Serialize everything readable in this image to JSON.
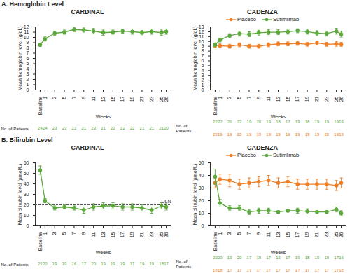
{
  "chart_data": [
    {
      "type": "line",
      "section": "A. Hemoglobin Level",
      "title": "CARDINAL",
      "x_label": "Weeks",
      "y_label": "Mean hemoglobin level (g/dL)",
      "x": [
        0,
        1,
        3,
        5,
        7,
        9,
        11,
        13,
        15,
        17,
        19,
        21,
        23,
        25,
        26
      ],
      "xlim": [
        -1,
        27
      ],
      "xticks": [
        {
          "value": 0,
          "label": "Baseline"
        },
        1,
        3,
        5,
        7,
        9,
        11,
        13,
        15,
        17,
        19,
        21,
        23,
        25,
        26
      ],
      "ylim": [
        0,
        12
      ],
      "yticks": [
        0,
        1,
        2,
        3,
        4,
        5,
        6,
        7,
        8,
        9,
        10,
        11,
        12
      ],
      "marker": "circle",
      "patients_label": "No. of Patients",
      "series": [
        {
          "name": "Sutimlimab",
          "color": "#5ca83c",
          "values": [
            8.6,
            9.7,
            10.8,
            11.0,
            11.5,
            11.4,
            11.2,
            10.9,
            11.0,
            11.2,
            11.1,
            10.9,
            11.1,
            10.9,
            11.1
          ],
          "errors": [
            0.3,
            0.4,
            0.4,
            0.4,
            0.4,
            0.4,
            0.5,
            0.5,
            0.4,
            0.4,
            0.5,
            0.4,
            0.5,
            0.5,
            0.5
          ],
          "n": [
            24,
            24,
            23,
            23,
            22,
            21,
            23,
            21,
            22,
            22,
            22,
            21,
            21,
            21,
            20
          ]
        }
      ]
    },
    {
      "type": "line",
      "title": "CADENZA",
      "x_label": "Weeks",
      "y_label": "Mean hemoglobin level (g/dL)",
      "x": [
        0,
        1,
        3,
        5,
        7,
        9,
        11,
        13,
        15,
        17,
        19,
        21,
        23,
        25,
        26
      ],
      "xlim": [
        -1,
        27
      ],
      "xticks": [
        {
          "value": 0,
          "label": "Baseline"
        },
        1,
        3,
        5,
        7,
        9,
        11,
        13,
        15,
        17,
        19,
        21,
        23,
        25,
        26
      ],
      "ylim": [
        0,
        13
      ],
      "yticks": [
        0,
        1,
        2,
        3,
        4,
        5,
        6,
        7,
        8,
        9,
        10,
        11,
        12,
        13
      ],
      "marker": "circle",
      "legend": "top",
      "patients_label": "No. of\nPatients",
      "series": [
        {
          "name": "Sutimlimab",
          "color": "#5ca83c",
          "values": [
            9.3,
            10.3,
            11.2,
            11.6,
            11.5,
            11.8,
            11.9,
            11.9,
            12.0,
            12.2,
            12.0,
            11.7,
            11.6,
            12.1,
            11.5
          ],
          "errors": [
            0.4,
            0.4,
            0.4,
            0.5,
            0.5,
            0.5,
            0.5,
            0.5,
            0.5,
            0.4,
            0.5,
            0.5,
            0.5,
            0.6,
            0.6
          ],
          "n": [
            22,
            22,
            21,
            22,
            19,
            20,
            19,
            18,
            17,
            19,
            18,
            19,
            19,
            19,
            19
          ]
        },
        {
          "name": "Placebo",
          "color": "#f07f24",
          "values": [
            9.2,
            9.1,
            9.0,
            9.3,
            9.0,
            9.0,
            9.3,
            9.5,
            9.5,
            9.6,
            9.4,
            9.7,
            9.4,
            9.5,
            9.4
          ],
          "errors": [
            0.4,
            0.4,
            0.4,
            0.4,
            0.4,
            0.4,
            0.4,
            0.4,
            0.4,
            0.4,
            0.4,
            0.4,
            0.4,
            0.5,
            0.4
          ],
          "n": [
            20,
            19,
            19,
            20,
            19,
            19,
            19,
            19,
            19,
            19,
            19,
            19,
            20,
            19,
            19
          ]
        }
      ]
    },
    {
      "type": "line",
      "section": "B. Bilirubin Level",
      "title": "CARDINAL",
      "x_label": "Weeks",
      "y_label": "Mean bilirubin level (µmol/L)",
      "x": [
        0,
        1,
        3,
        5,
        7,
        9,
        11,
        13,
        15,
        17,
        19,
        21,
        23,
        25,
        26
      ],
      "xlim": [
        -1,
        27
      ],
      "xticks": [
        {
          "value": 0,
          "label": "Baseline"
        },
        1,
        3,
        5,
        7,
        9,
        11,
        13,
        15,
        17,
        19,
        21,
        23,
        25,
        26
      ],
      "ylim": [
        0,
        60
      ],
      "yticks": [
        0,
        10,
        20,
        30,
        40,
        50,
        60
      ],
      "marker": "circle",
      "reference_line": {
        "value": 20,
        "label": "ULN"
      },
      "patients_label": "No. of Patients",
      "series": [
        {
          "name": "Sutimlimab",
          "color": "#5ca83c",
          "values": [
            53,
            24,
            17,
            18,
            17,
            15,
            18,
            19,
            19,
            18,
            18,
            17,
            15,
            19,
            18
          ],
          "errors": [
            4,
            2,
            2,
            2,
            2,
            3,
            3,
            3,
            3,
            3,
            3,
            3,
            3,
            3,
            3
          ],
          "n": [
            21,
            20,
            19,
            19,
            16,
            17,
            20,
            19,
            19,
            19,
            17,
            19,
            19,
            18,
            17
          ]
        }
      ]
    },
    {
      "type": "line",
      "title": "CADENZA",
      "x_label": "Weeks",
      "y_label": "Mean bilirubin level (µmol/L)",
      "x": [
        0,
        1,
        3,
        5,
        7,
        9,
        11,
        13,
        15,
        17,
        19,
        21,
        23,
        25,
        26
      ],
      "xlim": [
        -1,
        27
      ],
      "xticks": [
        {
          "value": 0,
          "label": "Baseline"
        },
        1,
        3,
        5,
        7,
        9,
        11,
        13,
        15,
        17,
        19,
        21,
        23,
        25,
        26
      ],
      "ylim": [
        0,
        50
      ],
      "yticks": [
        0,
        10,
        20,
        30,
        40,
        50
      ],
      "marker": "circle",
      "legend": "top",
      "patients_label": "No. of\nPatients",
      "series": [
        {
          "name": "Sutimlimab",
          "color": "#5ca83c",
          "values": [
            39,
            18,
            14,
            14,
            11,
            12,
            12,
            11,
            12,
            12,
            11.5,
            11,
            11,
            13,
            10
          ],
          "errors": [
            6,
            3,
            2,
            2,
            2,
            2,
            2,
            1,
            1,
            2,
            2,
            1,
            1,
            2,
            2
          ],
          "n": [
            20,
            20,
            19,
            20,
            17,
            19,
            17,
            16,
            17,
            19,
            18,
            19,
            19,
            17,
            16
          ]
        },
        {
          "name": "Placebo",
          "color": "#f07f24",
          "values": [
            34,
            37,
            36,
            33,
            34,
            35,
            36,
            34,
            35,
            33,
            33,
            33,
            33,
            32,
            34
          ],
          "errors": [
            4,
            4,
            5,
            4,
            4,
            4,
            4,
            4,
            4,
            4,
            4,
            4,
            4,
            4,
            4
          ],
          "n": [
            18,
            18,
            17,
            17,
            17,
            17,
            17,
            17,
            17,
            17,
            17,
            17,
            17,
            17,
            18
          ]
        }
      ]
    }
  ]
}
